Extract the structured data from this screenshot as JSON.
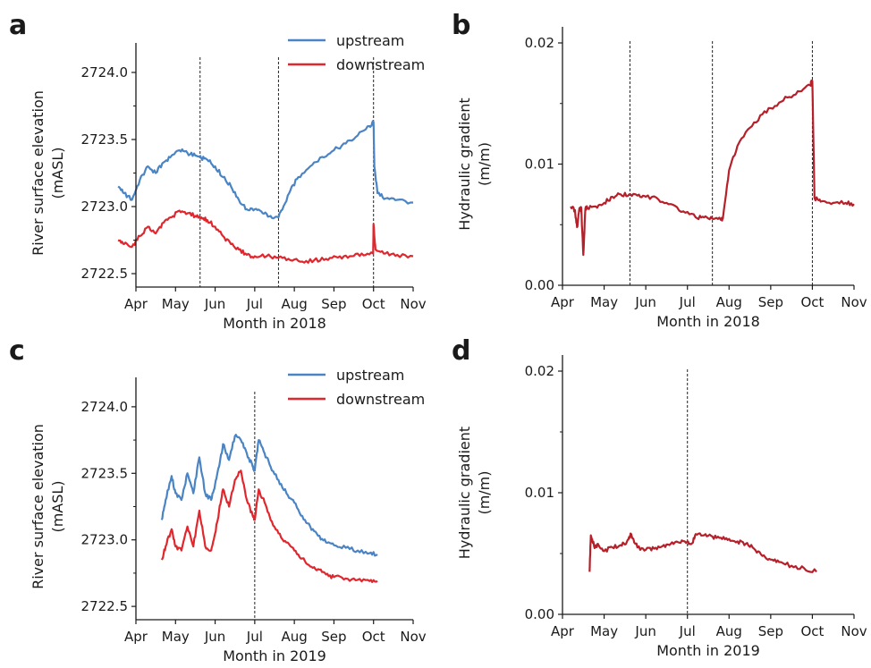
{
  "colors": {
    "upstream": "#4a84c4",
    "downstream": "#e0272e",
    "gradient": "#b5202a",
    "axis": "#1a1a1a"
  },
  "chart_data": [
    {
      "panel": "a",
      "type": "line",
      "xlabel": "Month in 2018",
      "ylabel": [
        "River surface elevation",
        "(mASL)"
      ],
      "xlim": [
        0,
        7
      ],
      "x_ticks": [
        0,
        1,
        2,
        3,
        4,
        5,
        6,
        7
      ],
      "x_tick_labels": [
        "Apr",
        "May",
        "Jun",
        "Jul",
        "Aug",
        "Sep",
        "Oct",
        "Nov"
      ],
      "ylim": [
        2722.4,
        2724.1
      ],
      "y_ticks": [
        2722.5,
        2723.0,
        2723.5,
        2724.0
      ],
      "y_tick_labels": [
        "2722.5",
        "2723.0",
        "2723.5",
        "2724.0"
      ],
      "vlines": [
        1.62,
        3.6,
        6.0
      ],
      "legend": "top-right",
      "series": [
        {
          "name": "upstream",
          "color": "upstream",
          "x": [
            -0.45,
            -0.3,
            -0.1,
            0.1,
            0.3,
            0.5,
            0.7,
            0.9,
            1.1,
            1.3,
            1.5,
            1.65,
            1.8,
            2.0,
            2.2,
            2.4,
            2.6,
            2.8,
            3.0,
            3.2,
            3.4,
            3.6,
            3.7,
            3.9,
            4.1,
            4.4,
            4.7,
            5.0,
            5.3,
            5.6,
            5.9,
            6.0,
            6.02,
            6.1,
            6.3,
            6.6,
            7.0
          ],
          "y": [
            2723.15,
            2723.1,
            2723.05,
            2723.2,
            2723.3,
            2723.25,
            2723.33,
            2723.38,
            2723.42,
            2723.4,
            2723.38,
            2723.36,
            2723.35,
            2723.3,
            2723.22,
            2723.15,
            2723.05,
            2722.98,
            2722.98,
            2722.95,
            2722.93,
            2722.92,
            2722.98,
            2723.12,
            2723.22,
            2723.3,
            2723.37,
            2723.42,
            2723.47,
            2723.53,
            2723.6,
            2723.63,
            2723.3,
            2723.1,
            2723.06,
            2723.05,
            2723.03
          ]
        },
        {
          "name": "downstream",
          "color": "downstream",
          "x": [
            -0.45,
            -0.3,
            -0.1,
            0.1,
            0.3,
            0.5,
            0.7,
            0.9,
            1.1,
            1.3,
            1.5,
            1.65,
            1.8,
            2.0,
            2.2,
            2.4,
            2.6,
            2.8,
            3.0,
            3.3,
            3.6,
            3.9,
            4.2,
            4.5,
            4.8,
            5.1,
            5.4,
            5.7,
            5.99,
            6.0,
            6.05,
            6.3,
            6.6,
            7.0
          ],
          "y": [
            2722.75,
            2722.72,
            2722.7,
            2722.78,
            2722.85,
            2722.8,
            2722.88,
            2722.92,
            2722.97,
            2722.95,
            2722.93,
            2722.92,
            2722.9,
            2722.85,
            2722.78,
            2722.72,
            2722.68,
            2722.64,
            2722.63,
            2722.63,
            2722.62,
            2722.6,
            2722.59,
            2722.6,
            2722.61,
            2722.62,
            2722.63,
            2722.65,
            2722.65,
            2722.87,
            2722.68,
            2722.65,
            2722.64,
            2722.63
          ]
        }
      ]
    },
    {
      "panel": "b",
      "type": "line",
      "xlabel": "Month in 2018",
      "ylabel": [
        "Hydraulic gradient",
        "(m/m)"
      ],
      "xlim": [
        0,
        7
      ],
      "x_ticks": [
        0,
        1,
        2,
        3,
        4,
        5,
        6,
        7
      ],
      "x_tick_labels": [
        "Apr",
        "May",
        "Jun",
        "Jul",
        "Aug",
        "Sep",
        "Oct",
        "Nov"
      ],
      "ylim": [
        0,
        0.02
      ],
      "y_ticks": [
        0,
        0.01,
        0.02
      ],
      "y_tick_labels": [
        "0.00",
        "0.01",
        "0.02"
      ],
      "vlines": [
        1.62,
        3.6,
        6.0
      ],
      "series": [
        {
          "name": "",
          "color": "gradient",
          "x": [
            0.2,
            0.3,
            0.35,
            0.4,
            0.45,
            0.5,
            0.55,
            0.6,
            0.8,
            1.0,
            1.2,
            1.4,
            1.6,
            1.8,
            2.0,
            2.3,
            2.6,
            2.9,
            3.2,
            3.4,
            3.6,
            3.8,
            3.85,
            4.0,
            4.2,
            4.5,
            4.8,
            5.1,
            5.4,
            5.7,
            5.95,
            5.98,
            6.0,
            6.05,
            6.2,
            6.5,
            6.8,
            7.0
          ],
          "y": [
            0.0065,
            0.0062,
            0.0048,
            0.0062,
            0.0064,
            0.0025,
            0.0063,
            0.0064,
            0.0065,
            0.0068,
            0.0073,
            0.0075,
            0.0075,
            0.0074,
            0.0073,
            0.0071,
            0.0067,
            0.0061,
            0.0056,
            0.0056,
            0.0055,
            0.0054,
            0.0055,
            0.0095,
            0.0115,
            0.013,
            0.0141,
            0.0148,
            0.0155,
            0.016,
            0.0165,
            0.0169,
            0.0168,
            0.0072,
            0.0069,
            0.0068,
            0.0068,
            0.0067
          ]
        }
      ]
    },
    {
      "panel": "c",
      "type": "line",
      "xlabel": "Month in 2019",
      "ylabel": [
        "River surface elevation",
        "(mASL)"
      ],
      "xlim": [
        0,
        7
      ],
      "x_ticks": [
        0,
        1,
        2,
        3,
        4,
        5,
        6,
        7
      ],
      "x_tick_labels": [
        "Apr",
        "May",
        "Jun",
        "Jul",
        "Aug",
        "Sep",
        "Oct",
        "Nov"
      ],
      "ylim": [
        2722.4,
        2724.1
      ],
      "y_ticks": [
        2722.5,
        2723.0,
        2723.5,
        2724.0
      ],
      "y_tick_labels": [
        "2722.5",
        "2723.0",
        "2723.5",
        "2724.0"
      ],
      "vlines": [
        3.0
      ],
      "legend": "top-right",
      "series": [
        {
          "name": "upstream",
          "color": "upstream",
          "x": [
            0.65,
            0.75,
            0.9,
            1.0,
            1.15,
            1.3,
            1.45,
            1.6,
            1.75,
            1.9,
            2.0,
            2.1,
            2.2,
            2.35,
            2.5,
            2.65,
            2.8,
            2.95,
            3.0,
            3.1,
            3.25,
            3.4,
            3.6,
            3.8,
            4.0,
            4.2,
            4.4,
            4.6,
            4.8,
            5.0,
            5.3,
            5.6,
            5.9,
            6.1
          ],
          "y": [
            2723.15,
            2723.3,
            2723.48,
            2723.35,
            2723.3,
            2723.5,
            2723.35,
            2723.62,
            2723.35,
            2723.3,
            2723.42,
            2723.55,
            2723.72,
            2723.6,
            2723.78,
            2723.75,
            2723.65,
            2723.55,
            2723.52,
            2723.75,
            2723.65,
            2723.55,
            2723.45,
            2723.35,
            2723.28,
            2723.18,
            2723.1,
            2723.03,
            2722.98,
            2722.96,
            2722.94,
            2722.92,
            2722.9,
            2722.89
          ]
        },
        {
          "name": "downstream",
          "color": "downstream",
          "x": [
            0.65,
            0.75,
            0.9,
            1.0,
            1.15,
            1.3,
            1.45,
            1.6,
            1.75,
            1.9,
            2.0,
            2.1,
            2.2,
            2.35,
            2.5,
            2.65,
            2.8,
            2.95,
            3.0,
            3.1,
            3.25,
            3.4,
            3.6,
            3.8,
            4.0,
            4.2,
            4.4,
            4.6,
            4.8,
            5.0,
            5.3,
            5.6,
            5.9,
            6.1
          ],
          "y": [
            2722.85,
            2722.95,
            2723.08,
            2722.95,
            2722.92,
            2723.1,
            2722.95,
            2723.22,
            2722.95,
            2722.92,
            2723.05,
            2723.22,
            2723.38,
            2723.25,
            2723.45,
            2723.52,
            2723.3,
            2723.18,
            2723.15,
            2723.38,
            2723.28,
            2723.15,
            2723.05,
            2722.98,
            2722.92,
            2722.86,
            2722.8,
            2722.78,
            2722.74,
            2722.72,
            2722.71,
            2722.7,
            2722.69,
            2722.69
          ]
        }
      ]
    },
    {
      "panel": "d",
      "type": "line",
      "xlabel": "Month in 2019",
      "ylabel": [
        "Hydraulic gradient",
        "(m/m)"
      ],
      "xlim": [
        0,
        7
      ],
      "x_ticks": [
        0,
        1,
        2,
        3,
        4,
        5,
        6,
        7
      ],
      "x_tick_labels": [
        "Apr",
        "May",
        "Jun",
        "Jul",
        "Aug",
        "Sep",
        "Oct",
        "Nov"
      ],
      "ylim": [
        0,
        0.02
      ],
      "y_ticks": [
        0,
        0.01,
        0.02
      ],
      "y_tick_labels": [
        "0.00",
        "0.01",
        "0.02"
      ],
      "vlines": [
        3.0
      ],
      "series": [
        {
          "name": "",
          "color": "gradient",
          "x": [
            0.65,
            0.68,
            0.72,
            0.78,
            0.85,
            1.0,
            1.2,
            1.4,
            1.55,
            1.65,
            1.8,
            2.0,
            2.2,
            2.4,
            2.6,
            2.8,
            3.0,
            3.1,
            3.2,
            3.4,
            3.6,
            3.8,
            4.0,
            4.2,
            4.4,
            4.6,
            4.8,
            5.0,
            5.2,
            5.5,
            5.8,
            6.1
          ],
          "y": [
            0.0035,
            0.0065,
            0.006,
            0.0055,
            0.0058,
            0.0052,
            0.0055,
            0.0057,
            0.006,
            0.0066,
            0.0055,
            0.0053,
            0.0054,
            0.0056,
            0.0058,
            0.0059,
            0.006,
            0.0058,
            0.0066,
            0.0065,
            0.0064,
            0.0063,
            0.0062,
            0.006,
            0.0058,
            0.0054,
            0.0048,
            0.0045,
            0.0043,
            0.004,
            0.0038,
            0.0035
          ]
        }
      ]
    }
  ],
  "panels": {
    "a": {
      "letter": "a"
    },
    "b": {
      "letter": "b"
    },
    "c": {
      "letter": "c"
    },
    "d": {
      "letter": "d"
    }
  }
}
